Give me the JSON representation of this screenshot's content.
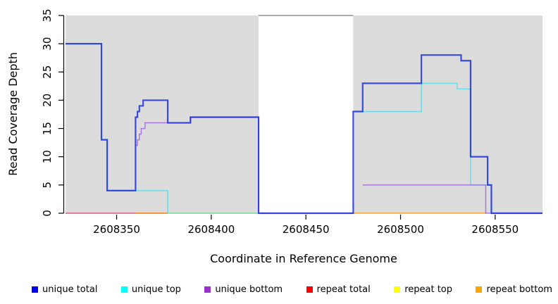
{
  "chart_data": {
    "type": "line",
    "subtype": "step-coverage",
    "title": "",
    "xlabel": "Coordinate in Reference Genome",
    "ylabel": "Read Coverage Depth",
    "xlim": [
      2608323,
      2608575
    ],
    "ylim": [
      0,
      35
    ],
    "xticks": [
      "2608350",
      "2608400",
      "2608450",
      "2608500",
      "2608550"
    ],
    "xtick_values": [
      2608350,
      2608400,
      2608450,
      2608500,
      2608550
    ],
    "yticks": [
      "0",
      "5",
      "10",
      "15",
      "20",
      "25",
      "30",
      "35"
    ],
    "ytick_values": [
      0,
      5,
      10,
      15,
      20,
      25,
      30,
      35
    ],
    "grid": "off",
    "plot_background": "#DCDCDC",
    "masked_region": {
      "from": 2608425,
      "to": 2608475,
      "fill": "#FFFFFF",
      "top_border_color": "#909090"
    },
    "legend_position": "bottom",
    "legend": [
      {
        "label": "unique total",
        "color": "#0000FF"
      },
      {
        "label": "unique top",
        "color": "#00FFFF"
      },
      {
        "label": "unique bottom",
        "color": "#9932CC"
      },
      {
        "label": "repeat total",
        "color": "#FF0000"
      },
      {
        "label": "repeat top",
        "color": "#FFFF00"
      },
      {
        "label": "repeat bottom",
        "color": "#FFA500"
      }
    ],
    "series": [
      {
        "name": "repeat top",
        "line_color": "#F0E000",
        "line_width": 1.5,
        "opacity": 0.9,
        "segments": [
          [
            [
              2608377,
              0
            ],
            [
              2608425,
              0
            ]
          ]
        ]
      },
      {
        "name": "repeat total",
        "line_color": "#D94070",
        "line_width": 1.5,
        "opacity": 0.85,
        "segments": [
          [
            [
              2608323,
              0
            ],
            [
              2608377,
              0
            ]
          ]
        ]
      },
      {
        "name": "repeat bottom",
        "line_color": "#FF9A00",
        "line_width": 1.6,
        "opacity": 0.9,
        "segments": [
          [
            [
              2608360,
              0
            ],
            [
              2608377,
              0
            ]
          ],
          [
            [
              2608475,
              0
            ],
            [
              2608545,
              0
            ]
          ]
        ]
      },
      {
        "name": "unique top",
        "line_color": "#45DCE8",
        "line_width": 1.5,
        "opacity": 0.75,
        "segments": [
          [
            [
              2608323,
              30
            ],
            [
              2608342,
              13
            ],
            [
              2608345,
              4
            ],
            [
              2608377,
              0
            ],
            [
              2608425,
              0
            ]
          ],
          [
            [
              2608475,
              18
            ],
            [
              2608511,
              23
            ],
            [
              2608530,
              22
            ],
            [
              2608537,
              5
            ],
            [
              2608548,
              0
            ],
            [
              2608575,
              0
            ]
          ]
        ]
      },
      {
        "name": "unique bottom",
        "line_color": "#A164E0",
        "line_width": 1.5,
        "opacity": 0.85,
        "segments": [
          [
            [
              2608360,
              12
            ],
            [
              2608361,
              13
            ],
            [
              2608362,
              14
            ],
            [
              2608363,
              15
            ],
            [
              2608365,
              16
            ],
            [
              2608389,
              17
            ],
            [
              2608425,
              0
            ],
            [
              2608475,
              0
            ]
          ],
          [
            [
              2608480,
              5
            ],
            [
              2608545,
              0
            ],
            [
              2608575,
              0
            ]
          ]
        ]
      },
      {
        "name": "unique total",
        "line_color": "#1E30E0",
        "line_width": 2.2,
        "opacity": 0.85,
        "segments": [
          [
            [
              2608323,
              30
            ],
            [
              2608342,
              13
            ],
            [
              2608345,
              4
            ],
            [
              2608360,
              17
            ],
            [
              2608361,
              18
            ],
            [
              2608362,
              19
            ],
            [
              2608364,
              20
            ],
            [
              2608377,
              16
            ],
            [
              2608389,
              17
            ],
            [
              2608425,
              0
            ],
            [
              2608475,
              18
            ],
            [
              2608480,
              23
            ],
            [
              2608511,
              28
            ],
            [
              2608532,
              27
            ],
            [
              2608537,
              10
            ],
            [
              2608546,
              5
            ],
            [
              2608548,
              0
            ],
            [
              2608575,
              0
            ]
          ]
        ]
      }
    ]
  }
}
